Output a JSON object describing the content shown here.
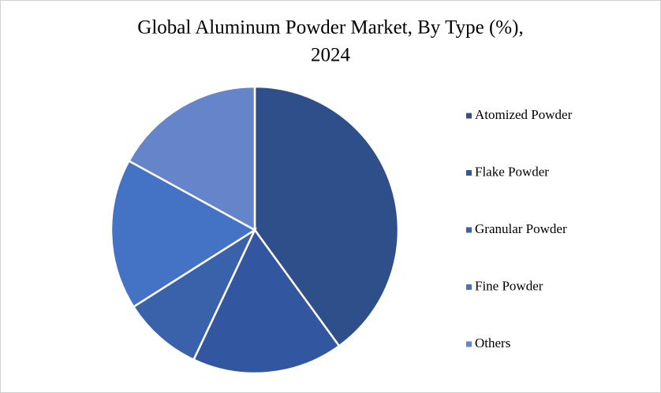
{
  "chart_data": {
    "type": "pie",
    "title": "Global Aluminum Powder Market, By Type (%),",
    "subtitle": "2024",
    "categories": [
      "Atomized Powder",
      "Flake Powder",
      "Granular Powder",
      "Fine Powder",
      "Others"
    ],
    "values": [
      40,
      17,
      9,
      17,
      17
    ],
    "colors": [
      "#2f4f8b",
      "#3257a0",
      "#3a62aa",
      "#4472c4",
      "#6584ca"
    ],
    "legend": "right"
  }
}
